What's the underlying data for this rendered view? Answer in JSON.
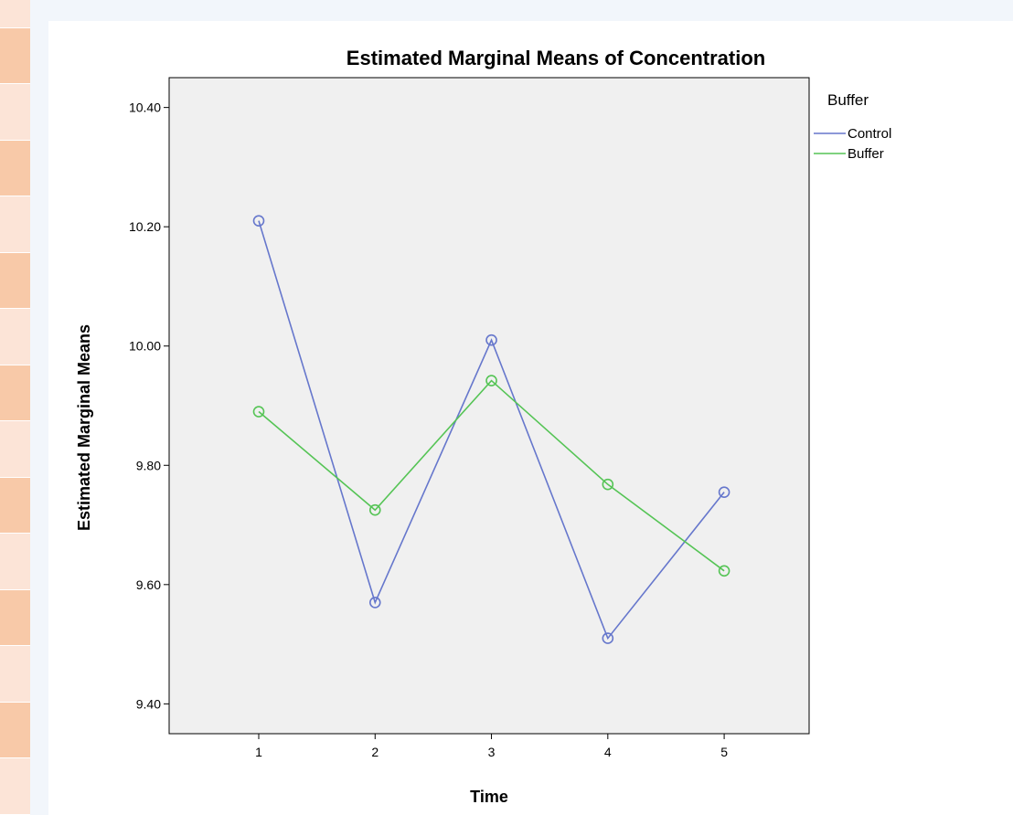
{
  "chart_data": {
    "type": "line",
    "title": "Estimated Marginal Means of Concentration",
    "xlabel": "Time",
    "ylabel": "Estimated Marginal Means",
    "categories": [
      "1",
      "2",
      "3",
      "4",
      "5"
    ],
    "ylim": [
      9.35,
      10.45
    ],
    "yticks": [
      "9.40",
      "9.60",
      "9.80",
      "10.00",
      "10.20",
      "10.40"
    ],
    "grid": false,
    "legend_title": "Buffer",
    "legend_position": "top-right",
    "series": [
      {
        "name": "Control",
        "color": "#6677cc",
        "values": [
          10.21,
          9.57,
          10.01,
          9.51,
          9.755
        ]
      },
      {
        "name": "Buffer",
        "color": "#55c455",
        "values": [
          9.89,
          9.725,
          9.942,
          9.768,
          9.623
        ]
      }
    ],
    "plot_background": "#f0f0f0"
  }
}
